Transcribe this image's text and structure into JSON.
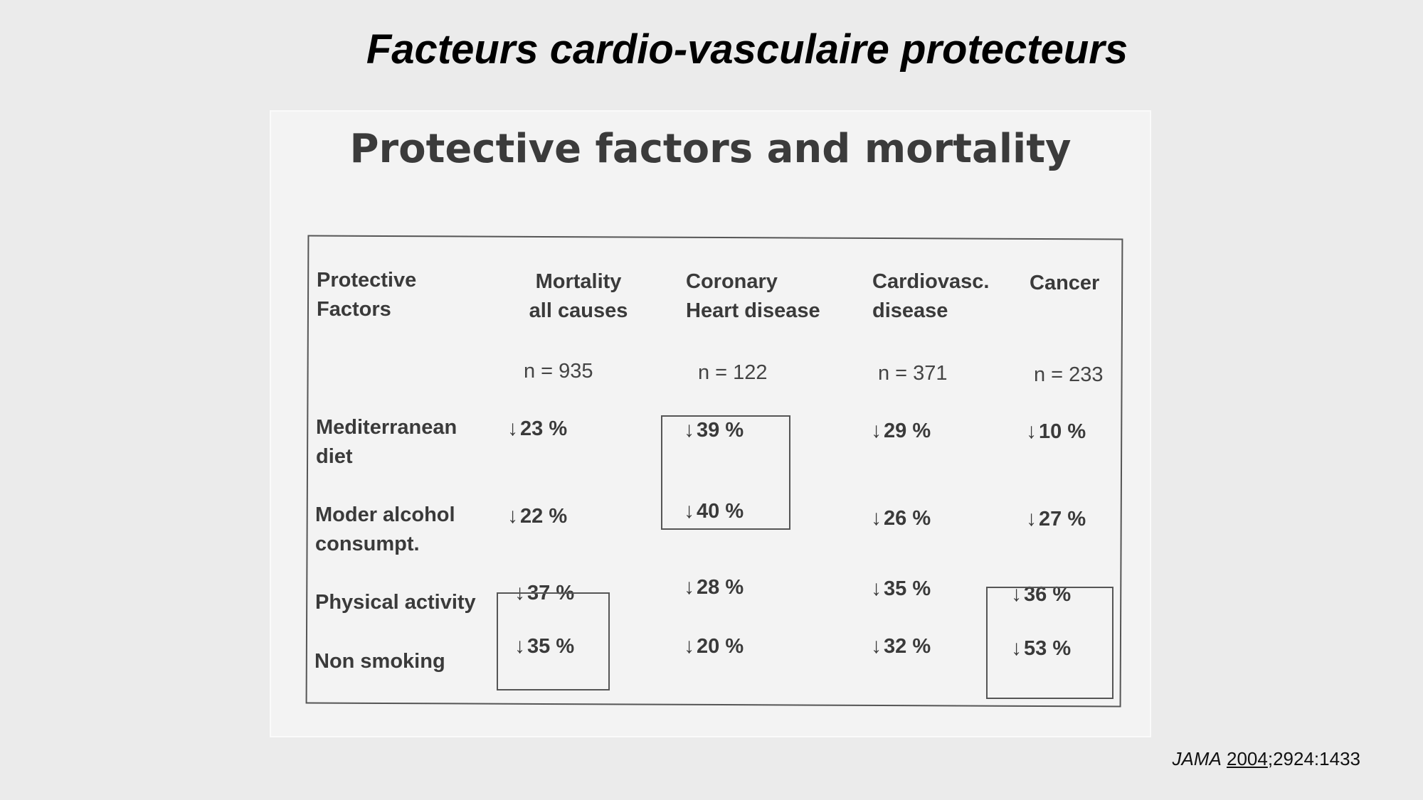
{
  "slide": {
    "title": "Facteurs cardio-vasculaire protecteurs",
    "citation": {
      "journal": "JAMA",
      "year": "2004",
      "rest": ";2924:1433"
    }
  },
  "figure": {
    "title": "Protective factors and mortality",
    "table": {
      "headers": [
        [
          "Protective",
          "Factors"
        ],
        [
          "Mortality",
          "all causes"
        ],
        [
          "Coronary",
          "Heart disease"
        ],
        [
          "Cardiovasc.",
          "disease"
        ],
        [
          "Cancer"
        ]
      ],
      "n_values": [
        "n = 935",
        "n = 122",
        "n = 371",
        "n = 233"
      ],
      "rows": [
        {
          "factor": [
            "Mediterranean",
            "diet"
          ],
          "values": [
            "23 %",
            "39 %",
            "29 %",
            "10 %"
          ]
        },
        {
          "factor": [
            "Moder alcohol",
            "consumpt."
          ],
          "values": [
            "22 %",
            "40 %",
            "26 %",
            "27 %"
          ]
        },
        {
          "factor": [
            "Physical activity"
          ],
          "values": [
            "37 %",
            "28 %",
            "35 %",
            "36 %"
          ]
        },
        {
          "factor": [
            "Non smoking"
          ],
          "values": [
            "35 %",
            "20 %",
            "32 %",
            "53 %"
          ]
        }
      ],
      "arrow": "↓"
    }
  }
}
